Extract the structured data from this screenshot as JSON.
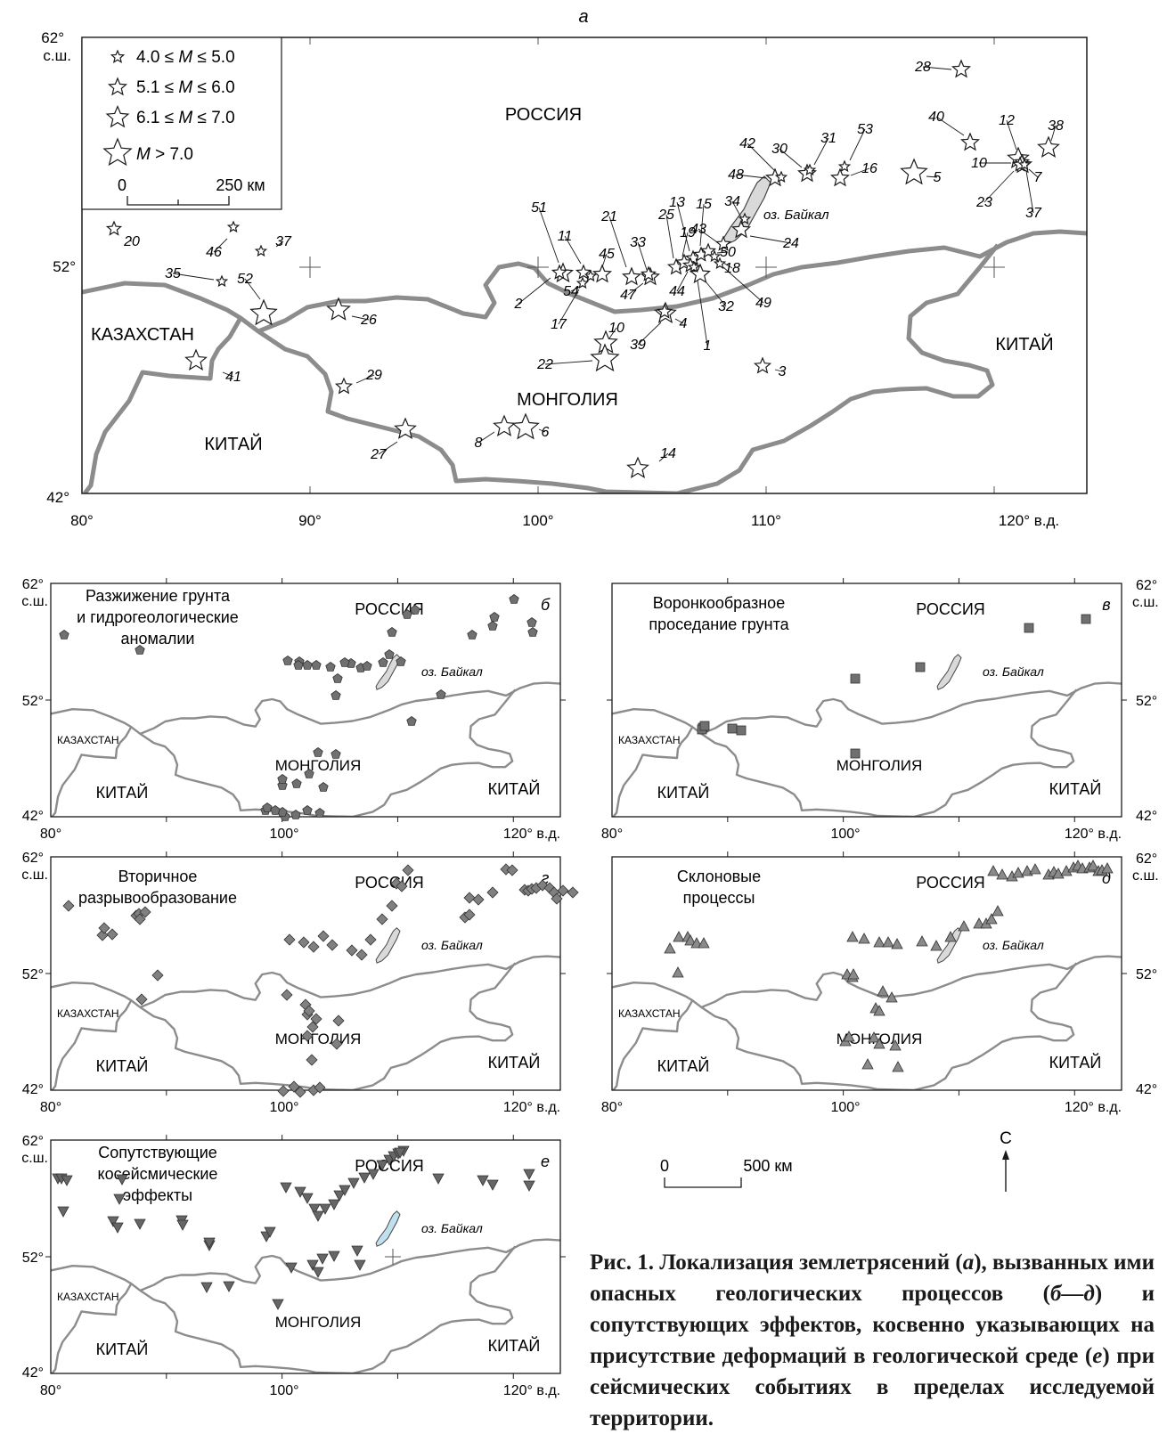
{
  "main_map": {
    "panel_letter": "а",
    "lat_top": "62°",
    "lat_top_sub": "с.ш.",
    "lat_mid": "52°",
    "lat_bottom": "42°",
    "lon_labels": [
      "80°",
      "90°",
      "100°",
      "110°",
      "120° в.д."
    ],
    "legend": [
      {
        "prefix": "4.0 ≤ ",
        "m": "M",
        "suffix": " ≤ 5.0"
      },
      {
        "prefix": "5.1 ≤ ",
        "m": "M",
        "suffix": " ≤ 6.0"
      },
      {
        "prefix": "6.1 ≤ ",
        "m": "M",
        "suffix": " ≤ 7.0"
      },
      {
        "prefix": "",
        "m": "M",
        "suffix": " > 7.0"
      }
    ],
    "scale_zero": "0",
    "scale_end": "250 км",
    "regions": [
      "РОССИЯ",
      "КАЗАХСТАН",
      "МОНГОЛИЯ",
      "КИТАЙ",
      "КИТАЙ"
    ],
    "lake": "оз. Байкал",
    "quake_numbers": [
      "1",
      "2",
      "3",
      "4",
      "5",
      "6",
      "7",
      "8",
      "10",
      "10",
      "11",
      "12",
      "13",
      "14",
      "15",
      "16",
      "17",
      "18",
      "19",
      "20",
      "21",
      "22",
      "23",
      "24",
      "25",
      "26",
      "27",
      "28",
      "29",
      "30",
      "31",
      "32",
      "33",
      "34",
      "35",
      "37",
      "37",
      "38",
      "39",
      "40",
      "41",
      "42",
      "43",
      "44",
      "45",
      "46",
      "47",
      "48",
      "49",
      "50",
      "51",
      "52",
      "53",
      "54"
    ]
  },
  "small_maps": [
    {
      "letter": "б",
      "title": [
        "Разжижение грунта",
        "и гидрогеологические",
        "аномалии"
      ],
      "marker": "pentagon"
    },
    {
      "letter": "в",
      "title": [
        "Воронкообразное",
        "проседание грунта"
      ],
      "marker": "square"
    },
    {
      "letter": "г",
      "title": [
        "Вторичное",
        "разрывообразование"
      ],
      "marker": "diamond"
    },
    {
      "letter": "д",
      "title": [
        "Склоновые",
        "процессы"
      ],
      "marker": "triangle"
    },
    {
      "letter": "е",
      "title": [
        "Сопутствующие",
        "косейсмические",
        "эффекты"
      ],
      "marker": "triangle-down"
    }
  ],
  "small_common": {
    "russia": "РОССИЯ",
    "mongolia": "МОНГОЛИЯ",
    "kazakhstan": "КАЗАХСТАН",
    "china": "КИТАЙ",
    "lake": "оз. Байкал",
    "lat_top": "62°",
    "lat_top_sub": "с.ш.",
    "lat_mid": "52°",
    "lat_bottom": "42°",
    "lon_labels": [
      "80°",
      "100°",
      "120° в.д."
    ]
  },
  "scale_bar": {
    "zero": "0",
    "end": "500 км"
  },
  "north": "С",
  "caption": {
    "t1": "Рис. 1. Локализация землетрясений (",
    "i1": "а",
    "t2": "), вызванных ими опасных геологических процессов (",
    "i2": "б—д",
    "t3": ") и сопутствующих эффектов, косвенно указывающих на присутствие деформаций в геологической среде (",
    "i3": "е",
    "t4": ") при сейсмических событиях в пределах исследуемой территории."
  },
  "colors": {
    "border": "#8c8c8c",
    "lake": "#d9d9d9",
    "lake_e": "#bfe0ee",
    "marker": "#7a7a7a",
    "frame": "#1a1a1a"
  }
}
